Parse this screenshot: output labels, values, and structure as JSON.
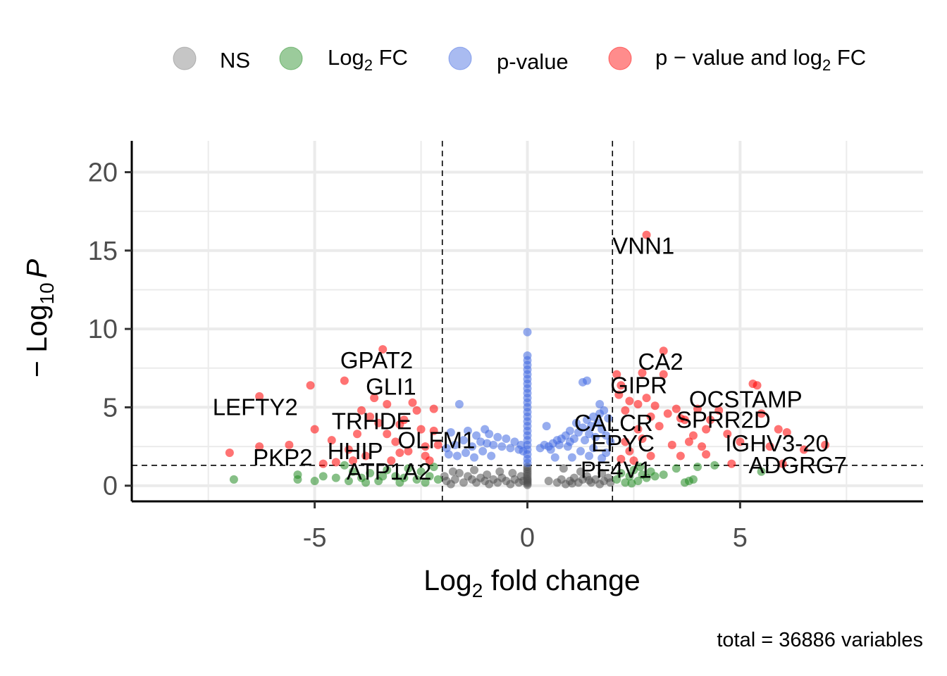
{
  "chart_data": {
    "type": "scatter",
    "xlabel_main": "Log",
    "xlabel_sub": "2",
    "xlabel_rest": " fold change",
    "ylabel_prefix": "− Log",
    "ylabel_sub": "10",
    "ylabel_italic": "P",
    "xlim": [
      -9.3,
      9.3
    ],
    "ylim": [
      -1.0,
      22.0
    ],
    "x_ticks": [
      -5,
      0,
      5
    ],
    "x_tick_labels": [
      "-5",
      "0",
      "5"
    ],
    "y_ticks": [
      0,
      5,
      10,
      15,
      20
    ],
    "y_tick_labels": [
      "0",
      "5",
      "10",
      "15",
      "20"
    ],
    "grid": true,
    "fc_cutoff": 2,
    "p_cutoff_neglog10": 1.3,
    "legend_position": "top",
    "caption": "total = 36886 variables",
    "legend": [
      {
        "key": "NS",
        "main": "NS",
        "sub": "",
        "rest": "",
        "color": "#808080"
      },
      {
        "key": "FC",
        "main": "Log",
        "sub": "2",
        "rest": " FC",
        "color": "#228b22"
      },
      {
        "key": "P",
        "main": "p-value",
        "sub": "",
        "rest": "",
        "color": "#4169e1"
      },
      {
        "key": "FC_P",
        "main": "p − value and log",
        "sub": "2",
        "rest": " FC",
        "color": "#ff0000"
      }
    ],
    "series": [
      {
        "key": "NS",
        "color": "#505050",
        "points": [
          [
            0,
            0.05
          ],
          [
            0,
            0.15
          ],
          [
            0,
            0.25
          ],
          [
            0,
            0.35
          ],
          [
            0,
            0.45
          ],
          [
            0,
            0.6
          ],
          [
            0,
            0.75
          ],
          [
            0,
            0.9
          ],
          [
            0,
            1.05
          ],
          [
            0,
            1.2
          ],
          [
            -0.1,
            0.3
          ],
          [
            -0.2,
            0.2
          ],
          [
            -0.3,
            0.4
          ],
          [
            -0.4,
            0.1
          ],
          [
            -0.5,
            0.3
          ],
          [
            -0.6,
            0.5
          ],
          [
            -0.7,
            0.2
          ],
          [
            -0.8,
            0.4
          ],
          [
            -0.9,
            0.1
          ],
          [
            -1.0,
            0.3
          ],
          [
            -1.1,
            0.5
          ],
          [
            -1.2,
            0.2
          ],
          [
            -1.3,
            0.4
          ],
          [
            -1.4,
            0.6
          ],
          [
            -1.5,
            0.2
          ],
          [
            -1.6,
            0.8
          ],
          [
            -1.7,
            0.4
          ],
          [
            -1.8,
            0.1
          ],
          [
            -1.9,
            0.3
          ],
          [
            -1.95,
            0.6
          ],
          [
            -0.35,
            0.8
          ],
          [
            -0.65,
            0.9
          ],
          [
            -0.95,
            0.7
          ],
          [
            -1.25,
            1.0
          ],
          [
            -1.75,
            0.9
          ],
          [
            -0.15,
            0.6
          ],
          [
            0.5,
            0.3
          ],
          [
            0.7,
            0.2
          ],
          [
            0.8,
            0.4
          ],
          [
            0.9,
            0.1
          ],
          [
            1.0,
            0.3
          ],
          [
            1.1,
            0.5
          ],
          [
            1.2,
            0.2
          ],
          [
            1.3,
            0.4
          ],
          [
            1.4,
            0.6
          ],
          [
            1.5,
            0.2
          ],
          [
            1.6,
            0.4
          ],
          [
            1.7,
            0.1
          ],
          [
            1.8,
            0.3
          ],
          [
            1.9,
            0.5
          ],
          [
            1.95,
            0.2
          ],
          [
            0.85,
            1.1
          ],
          [
            1.25,
            0.9
          ],
          [
            1.75,
            0.8
          ],
          [
            1.45,
            0.35
          ],
          [
            1.05,
            0.15
          ]
        ]
      },
      {
        "key": "FC",
        "color": "#228b22",
        "points": [
          [
            -6.9,
            0.4
          ],
          [
            -5.4,
            0.7
          ],
          [
            -5.4,
            0.4
          ],
          [
            -5.0,
            0.3
          ],
          [
            -4.8,
            0.6
          ],
          [
            -4.5,
            0.5
          ],
          [
            -4.3,
            1.3
          ],
          [
            -4.1,
            0.9
          ],
          [
            -3.9,
            0.5
          ],
          [
            -3.7,
            0.8
          ],
          [
            -3.5,
            0.3
          ],
          [
            -3.3,
            1.0
          ],
          [
            -3.1,
            0.6
          ],
          [
            -3.0,
            0.2
          ],
          [
            -2.8,
            1.1
          ],
          [
            -2.6,
            0.4
          ],
          [
            -2.5,
            0.9
          ],
          [
            -2.4,
            0.2
          ],
          [
            -2.3,
            0.6
          ],
          [
            -2.2,
            1.2
          ],
          [
            -2.1,
            0.4
          ],
          [
            -3.8,
            0.2
          ],
          [
            -4.2,
            0.3
          ],
          [
            -2.9,
            0.5
          ],
          [
            -3.4,
            0.6
          ],
          [
            2.1,
            0.4
          ],
          [
            2.2,
            0.8
          ],
          [
            2.3,
            0.2
          ],
          [
            2.4,
            0.6
          ],
          [
            2.5,
            1.0
          ],
          [
            2.6,
            0.3
          ],
          [
            2.7,
            0.7
          ],
          [
            2.8,
            0.5
          ],
          [
            2.9,
            0.9
          ],
          [
            3.0,
            0.6
          ],
          [
            3.2,
            0.7
          ],
          [
            3.5,
            1.1
          ],
          [
            3.7,
            0.2
          ],
          [
            3.8,
            0.3
          ],
          [
            3.9,
            0.4
          ],
          [
            4.0,
            1.2
          ],
          [
            4.4,
            1.3
          ],
          [
            5.5,
            0.9
          ],
          [
            2.45,
            0.15
          ],
          [
            2.65,
            1.2
          ]
        ]
      },
      {
        "key": "P",
        "color": "#4169e1",
        "points": [
          [
            0,
            9.8
          ],
          [
            0,
            8.3
          ],
          [
            0,
            8.0
          ],
          [
            0,
            7.7
          ],
          [
            0,
            7.4
          ],
          [
            0,
            7.1
          ],
          [
            0,
            6.8
          ],
          [
            0,
            6.5
          ],
          [
            0,
            6.2
          ],
          [
            0,
            5.9
          ],
          [
            0,
            5.6
          ],
          [
            0,
            5.3
          ],
          [
            0,
            5.0
          ],
          [
            0,
            4.7
          ],
          [
            0,
            4.4
          ],
          [
            0,
            4.1
          ],
          [
            0,
            3.8
          ],
          [
            0,
            3.5
          ],
          [
            0,
            3.2
          ],
          [
            0,
            2.9
          ],
          [
            0,
            2.6
          ],
          [
            0,
            2.3
          ],
          [
            0,
            2.0
          ],
          [
            0,
            1.7
          ],
          [
            0,
            1.45
          ],
          [
            -1.6,
            5.2
          ],
          [
            -1.4,
            3.5
          ],
          [
            -1.2,
            3.2
          ],
          [
            -1.0,
            3.6
          ],
          [
            -0.9,
            3.3
          ],
          [
            -0.95,
            2.7
          ],
          [
            -0.7,
            3.1
          ],
          [
            -0.6,
            2.5
          ],
          [
            -0.5,
            3.0
          ],
          [
            -0.4,
            2.4
          ],
          [
            -0.3,
            2.8
          ],
          [
            -0.2,
            2.3
          ],
          [
            -0.15,
            2.6
          ],
          [
            -0.1,
            2.2
          ],
          [
            -1.5,
            2.9
          ],
          [
            -1.7,
            2.6
          ],
          [
            -1.9,
            2.4
          ],
          [
            -1.8,
            3.4
          ],
          [
            -1.3,
            2.5
          ],
          [
            -1.1,
            2.8
          ],
          [
            -0.8,
            2.6
          ],
          [
            -1.65,
            1.9
          ],
          [
            -1.45,
            2.1
          ],
          [
            -1.25,
            1.8
          ],
          [
            -1.05,
            2.2
          ],
          [
            -0.85,
            1.9
          ],
          [
            -1.85,
            2.0
          ],
          [
            0.3,
            2.4
          ],
          [
            0.4,
            2.6
          ],
          [
            0.45,
            3.8
          ],
          [
            0.5,
            2.5
          ],
          [
            0.6,
            2.7
          ],
          [
            0.7,
            2.9
          ],
          [
            0.75,
            2.6
          ],
          [
            0.8,
            3.0
          ],
          [
            0.9,
            3.2
          ],
          [
            1.0,
            3.5
          ],
          [
            1.0,
            2.8
          ],
          [
            1.1,
            3.0
          ],
          [
            1.15,
            4.0
          ],
          [
            1.2,
            3.4
          ],
          [
            1.3,
            3.7
          ],
          [
            1.35,
            2.9
          ],
          [
            1.4,
            4.2
          ],
          [
            1.45,
            3.3
          ],
          [
            1.5,
            3.8
          ],
          [
            1.55,
            4.4
          ],
          [
            1.6,
            3.1
          ],
          [
            1.65,
            4.0
          ],
          [
            1.7,
            4.6
          ],
          [
            1.75,
            3.6
          ],
          [
            1.8,
            4.8
          ],
          [
            1.85,
            3.2
          ],
          [
            1.9,
            4.3
          ],
          [
            1.95,
            2.8
          ],
          [
            1.3,
            6.6
          ],
          [
            1.4,
            6.7
          ],
          [
            1.7,
            5.2
          ],
          [
            0.55,
            2.3
          ],
          [
            0.95,
            2.5
          ],
          [
            1.25,
            2.2
          ],
          [
            1.55,
            2.4
          ],
          [
            1.85,
            2.1
          ],
          [
            1.05,
            1.8
          ],
          [
            1.45,
            1.9
          ],
          [
            0.65,
            1.8
          ],
          [
            1.75,
            1.75
          ]
        ]
      },
      {
        "key": "FC_P",
        "color": "#ff0000",
        "points": [
          [
            2.8,
            16.0
          ],
          [
            -3.4,
            8.7
          ],
          [
            3.2,
            8.6
          ],
          [
            -4.3,
            6.7
          ],
          [
            -5.1,
            6.4
          ],
          [
            -6.3,
            5.7
          ],
          [
            -3.3,
            5.2
          ],
          [
            -3.5,
            4.0
          ],
          [
            -3.0,
            3.9
          ],
          [
            -2.6,
            4.8
          ],
          [
            -2.2,
            4.9
          ],
          [
            -3.3,
            3.3
          ],
          [
            -3.0,
            2.1
          ],
          [
            -5.0,
            3.6
          ],
          [
            -4.6,
            2.9
          ],
          [
            -4.0,
            3.3
          ],
          [
            -5.6,
            2.6
          ],
          [
            -6.3,
            2.5
          ],
          [
            -7.0,
            2.1
          ],
          [
            -2.8,
            2.2
          ],
          [
            -2.4,
            2.5
          ],
          [
            -4.1,
            1.6
          ],
          [
            -3.8,
            1.9
          ],
          [
            -3.2,
            1.6
          ],
          [
            -2.5,
            3.6
          ],
          [
            -2.2,
            3.5
          ],
          [
            -3.7,
            4.4
          ],
          [
            -2.9,
            4.2
          ],
          [
            -3.6,
            5.6
          ],
          [
            -2.7,
            5.3
          ],
          [
            -4.8,
            1.4
          ],
          [
            -4.5,
            1.5
          ],
          [
            -4.2,
            2.3
          ],
          [
            -2.3,
            1.6
          ],
          [
            -2.1,
            2.6
          ],
          [
            -3.1,
            2.8
          ],
          [
            -3.9,
            4.8
          ],
          [
            -2.4,
            1.9
          ],
          [
            2.1,
            7.1
          ],
          [
            2.2,
            6.4
          ],
          [
            2.6,
            5.2
          ],
          [
            2.8,
            5.6
          ],
          [
            3.0,
            5.1
          ],
          [
            3.2,
            7.1
          ],
          [
            3.5,
            4.9
          ],
          [
            3.7,
            4.2
          ],
          [
            4.0,
            4.9
          ],
          [
            4.3,
            4.2
          ],
          [
            5.3,
            6.5
          ],
          [
            5.4,
            6.4
          ],
          [
            5.5,
            4.6
          ],
          [
            5.9,
            3.6
          ],
          [
            6.1,
            3.4
          ],
          [
            5.7,
            2.5
          ],
          [
            6.5,
            2.3
          ],
          [
            7.0,
            2.6
          ],
          [
            5.0,
            2.8
          ],
          [
            4.7,
            3.3
          ],
          [
            4.2,
            3.6
          ],
          [
            3.6,
            4.3
          ],
          [
            3.1,
            3.8
          ],
          [
            2.7,
            3.0
          ],
          [
            2.4,
            2.2
          ],
          [
            2.2,
            1.7
          ],
          [
            2.3,
            2.8
          ],
          [
            2.5,
            1.6
          ],
          [
            2.9,
            1.9
          ],
          [
            3.4,
            2.6
          ],
          [
            3.6,
            1.9
          ],
          [
            4.2,
            2.0
          ],
          [
            4.8,
            1.4
          ],
          [
            6.0,
            1.4
          ],
          [
            2.3,
            4.8
          ],
          [
            2.6,
            3.6
          ],
          [
            2.4,
            5.4
          ],
          [
            2.15,
            5.8
          ],
          [
            3.3,
            4.6
          ],
          [
            3.9,
            3.2
          ],
          [
            4.5,
            4.8
          ],
          [
            2.9,
            4.4
          ],
          [
            3.8,
            2.8
          ],
          [
            4.1,
            2.5
          ],
          [
            2.7,
            7.2
          ]
        ]
      }
    ],
    "gene_labels": [
      {
        "text": "VNN1",
        "x": 2.0,
        "y": 14.8
      },
      {
        "text": "GPAT2",
        "x": -4.4,
        "y": 7.5
      },
      {
        "text": "CA2",
        "x": 2.6,
        "y": 7.4
      },
      {
        "text": "GLI1",
        "x": -3.8,
        "y": 5.8
      },
      {
        "text": "GIPR",
        "x": 1.95,
        "y": 5.9
      },
      {
        "text": "OCSTAMP",
        "x": 3.8,
        "y": 5.0
      },
      {
        "text": "LEFTY2",
        "x": -7.4,
        "y": 4.5
      },
      {
        "text": "TRHDE",
        "x": -4.6,
        "y": 3.6
      },
      {
        "text": "SPRR2D",
        "x": 3.5,
        "y": 3.7
      },
      {
        "text": "CALCR",
        "x": 1.1,
        "y": 3.5
      },
      {
        "text": "OLFM1",
        "x": -3.05,
        "y": 2.4
      },
      {
        "text": "EPYC",
        "x": 1.5,
        "y": 2.2
      },
      {
        "text": "IGHV3-20",
        "x": 4.65,
        "y": 2.2
      },
      {
        "text": "HHIP",
        "x": -4.7,
        "y": 1.7
      },
      {
        "text": "PKP2",
        "x": -6.45,
        "y": 1.3
      },
      {
        "text": "ADGRG7",
        "x": 5.2,
        "y": 0.8
      },
      {
        "text": "ATP1A2",
        "x": -4.25,
        "y": 0.4
      },
      {
        "text": "PF4V1",
        "x": 1.25,
        "y": 0.5
      }
    ]
  }
}
